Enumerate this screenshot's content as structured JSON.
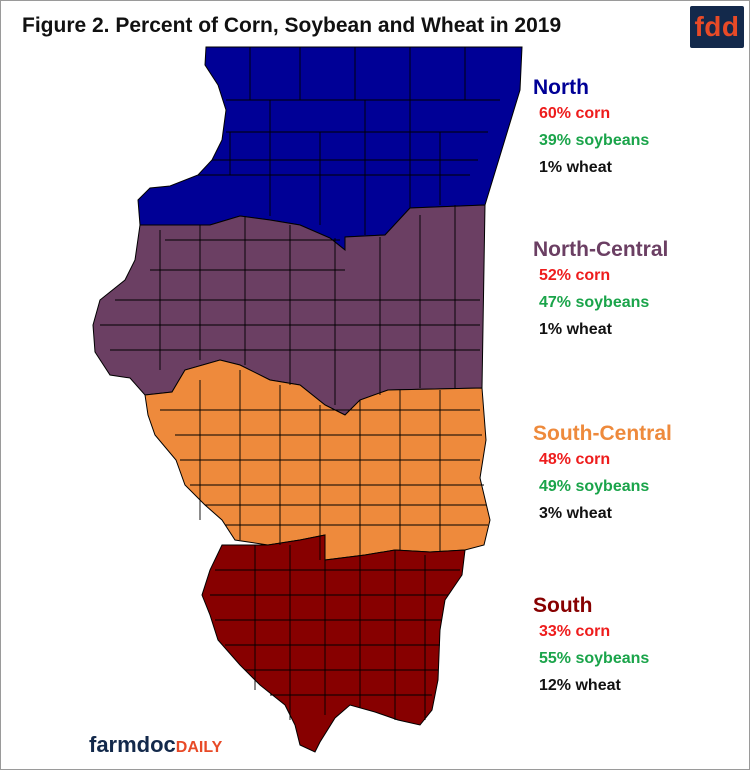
{
  "title": "Figure 2.  Percent of Corn, Soybean and Wheat in 2019",
  "badge": "fdd",
  "colors": {
    "north": "#000096",
    "north_central": "#6b3f63",
    "south_central": "#ee8a3c",
    "south": "#870000",
    "corn_text": "#ee1c1c",
    "soy_text": "#1aa44a",
    "wheat_text": "#111111",
    "badge_bg": "#13294b",
    "badge_text": "#e84a27",
    "logo_main": "#13294b",
    "logo_accent": "#e84a27"
  },
  "regions": [
    {
      "id": "north",
      "name": "North",
      "corn": "60% corn",
      "soybeans": "39% soybeans",
      "wheat": "1% wheat"
    },
    {
      "id": "north_central",
      "name": "North-Central",
      "corn": "52% corn",
      "soybeans": "47% soybeans",
      "wheat": "1% wheat"
    },
    {
      "id": "south_central",
      "name": "South-Central",
      "corn": "48% corn",
      "soybeans": "49% soybeans",
      "wheat": "3% wheat"
    },
    {
      "id": "south",
      "name": "South",
      "corn": "33% corn",
      "soybeans": "55% soybeans",
      "wheat": "12% wheat"
    }
  ],
  "logo": {
    "main": "farmdoc",
    "accent": "DAILY"
  }
}
